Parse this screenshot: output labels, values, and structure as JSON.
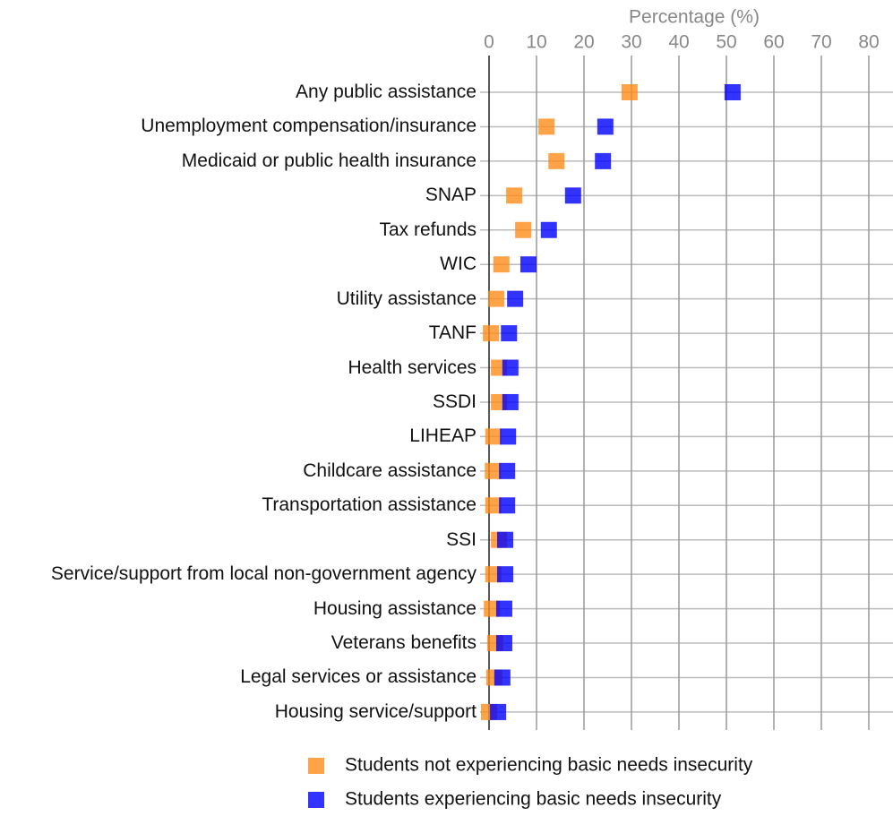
{
  "chart_data": {
    "type": "dot",
    "x_label": "Percentage (%)",
    "categories": [
      "Any public assistance",
      "Unemployment compensation/insurance",
      "Medicaid or public health insurance",
      "SNAP",
      "Tax refunds",
      "WIC",
      "Utility assistance",
      "TANF",
      "Health services",
      "SSDI",
      "LIHEAP",
      "Childcare assistance",
      "Transportation assistance",
      "SSI",
      "Service/support from local non-government agency",
      "Housing assistance",
      "Veterans benefits",
      "Legal services or assistance",
      "Housing service/support"
    ],
    "series": [
      {
        "name": "Students not experiencing basic needs insecurity",
        "color": "#ff8c1a",
        "values": [
          29.6,
          12.1,
          14.2,
          5.3,
          7.2,
          2.6,
          1.5,
          0.4,
          2.1,
          2.1,
          0.9,
          0.8,
          0.9,
          2.1,
          0.9,
          0.6,
          1.3,
          1.1,
          0
        ]
      },
      {
        "name": "Students experiencing basic needs insecurity",
        "color": "#0000ff",
        "values": [
          51.3,
          24.5,
          24.0,
          17.7,
          12.6,
          8.3,
          5.5,
          4.2,
          4.5,
          4.5,
          4.0,
          3.8,
          3.8,
          3.4,
          3.4,
          3.2,
          3.2,
          2.8,
          1.9
        ]
      }
    ],
    "xlim": [
      0,
      80
    ],
    "xticks": [
      0,
      10,
      20,
      30,
      40,
      50,
      60,
      70,
      80
    ],
    "grid": true,
    "legend": "bottom"
  }
}
